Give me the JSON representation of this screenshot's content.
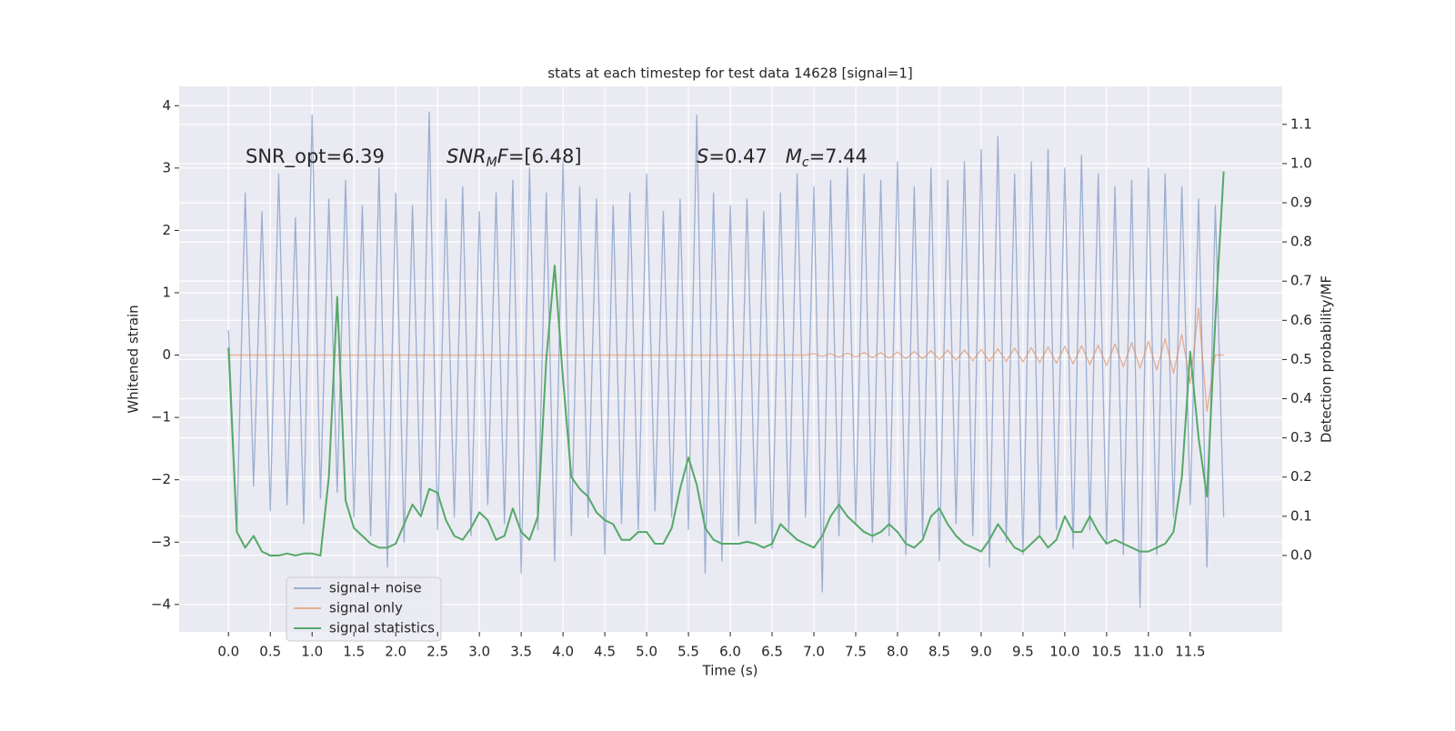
{
  "chart_data": {
    "type": "line",
    "title": "stats at each timestep for test data 14628 [signal=1]",
    "xlabel": "Time (s)",
    "ylabel": "Whitened strain",
    "y2label": "Detection probability/MF",
    "x": [
      0.0,
      0.1,
      0.2,
      0.3,
      0.4,
      0.5,
      0.6,
      0.7,
      0.8,
      0.9,
      1.0,
      1.1,
      1.2,
      1.3,
      1.4,
      1.5,
      1.6,
      1.7,
      1.8,
      1.9,
      2.0,
      2.1,
      2.2,
      2.3,
      2.4,
      2.5,
      2.6,
      2.7,
      2.8,
      2.9,
      3.0,
      3.1,
      3.2,
      3.3,
      3.4,
      3.5,
      3.6,
      3.7,
      3.8,
      3.9,
      4.0,
      4.1,
      4.2,
      4.3,
      4.4,
      4.5,
      4.6,
      4.7,
      4.8,
      4.9,
      5.0,
      5.1,
      5.2,
      5.3,
      5.4,
      5.5,
      5.6,
      5.7,
      5.8,
      5.9,
      6.0,
      6.1,
      6.2,
      6.3,
      6.4,
      6.5,
      6.6,
      6.7,
      6.8,
      6.9,
      7.0,
      7.1,
      7.2,
      7.3,
      7.4,
      7.5,
      7.6,
      7.7,
      7.8,
      7.9,
      8.0,
      8.1,
      8.2,
      8.3,
      8.4,
      8.5,
      8.6,
      8.7,
      8.8,
      8.9,
      9.0,
      9.1,
      9.2,
      9.3,
      9.4,
      9.5,
      9.6,
      9.7,
      9.8,
      9.9,
      10.0,
      10.1,
      10.2,
      10.3,
      10.4,
      10.5,
      10.6,
      10.7,
      10.8,
      10.9,
      11.0,
      11.1,
      11.2,
      11.3,
      11.4,
      11.5,
      11.6,
      11.7,
      11.8,
      11.9
    ],
    "series": [
      {
        "name": "signal+ noise",
        "color": "#4c72b0",
        "alpha": 0.5,
        "values": [
          0.4,
          -2.8,
          2.6,
          -2.1,
          2.3,
          -2.5,
          2.9,
          -2.4,
          2.2,
          -2.7,
          3.85,
          -2.3,
          2.5,
          -2.2,
          2.8,
          -2.6,
          2.4,
          -2.9,
          3.0,
          -3.4,
          2.6,
          -3.0,
          2.4,
          -2.5,
          3.9,
          -2.8,
          2.5,
          -2.6,
          2.7,
          -2.9,
          2.3,
          -2.4,
          2.6,
          -2.7,
          2.8,
          -3.5,
          3.0,
          -2.8,
          2.6,
          -3.3,
          3.1,
          -2.9,
          2.7,
          -2.6,
          2.5,
          -3.2,
          2.4,
          -2.7,
          2.6,
          -2.8,
          2.9,
          -2.5,
          2.3,
          -2.6,
          2.5,
          -2.8,
          3.85,
          -3.5,
          2.6,
          -3.3,
          2.4,
          -2.9,
          2.5,
          -2.7,
          2.3,
          -3.1,
          2.6,
          -2.8,
          2.9,
          -2.6,
          2.7,
          -3.8,
          2.8,
          -2.9,
          3.0,
          -2.7,
          2.9,
          -3.0,
          2.8,
          -2.9,
          3.1,
          -3.2,
          2.7,
          -2.9,
          3.0,
          -3.3,
          2.8,
          -2.7,
          3.1,
          -2.9,
          3.3,
          -3.4,
          3.5,
          -3.0,
          2.9,
          -3.2,
          3.1,
          -2.9,
          3.3,
          -2.8,
          3.0,
          -3.1,
          3.2,
          -2.8,
          2.9,
          -3.0,
          2.7,
          -3.2,
          2.8,
          -4.05,
          3.0,
          -3.2,
          2.9,
          -2.6,
          2.7,
          -2.4,
          2.5,
          -3.4,
          2.4,
          -2.6
        ]
      },
      {
        "name": "signal only",
        "color": "#dd8452",
        "alpha": 0.6,
        "values": [
          0,
          0,
          0,
          0,
          0,
          0,
          0,
          0,
          0,
          0,
          0,
          0,
          0,
          0,
          0,
          0,
          0,
          0,
          0,
          0,
          0,
          0,
          0,
          0,
          0,
          0,
          0,
          0,
          0,
          0,
          0,
          0,
          0,
          0,
          0,
          0,
          0,
          0,
          0,
          0,
          0,
          0,
          0,
          0,
          0,
          0,
          0,
          0,
          0,
          0,
          0,
          0,
          0,
          0,
          0,
          0,
          0,
          0,
          0,
          0,
          0,
          0,
          0,
          0,
          0,
          0,
          0,
          0,
          0,
          0,
          0.02,
          -0.02,
          0.02,
          -0.03,
          0.03,
          -0.03,
          0.04,
          -0.04,
          0.04,
          -0.05,
          0.05,
          -0.06,
          0.06,
          -0.06,
          0.07,
          -0.07,
          0.08,
          -0.08,
          0.08,
          -0.09,
          0.09,
          -0.1,
          0.1,
          -0.1,
          0.11,
          -0.11,
          0.12,
          -0.12,
          0.13,
          -0.13,
          0.14,
          -0.14,
          0.15,
          -0.15,
          0.16,
          -0.17,
          0.18,
          -0.19,
          0.2,
          -0.21,
          0.22,
          -0.24,
          0.26,
          -0.29,
          0.33,
          -0.45,
          0.75,
          -0.9,
          0,
          0
        ]
      },
      {
        "name": "signal statistics",
        "color": "#55a868",
        "axis": "y2",
        "values": [
          0.53,
          0.06,
          0.02,
          0.05,
          0.01,
          0.0,
          0.0,
          0.005,
          0.0,
          0.005,
          0.005,
          0.0,
          0.2,
          0.66,
          0.14,
          0.07,
          0.05,
          0.03,
          0.02,
          0.02,
          0.03,
          0.08,
          0.13,
          0.1,
          0.17,
          0.16,
          0.09,
          0.05,
          0.04,
          0.07,
          0.11,
          0.09,
          0.04,
          0.05,
          0.12,
          0.06,
          0.04,
          0.1,
          0.5,
          0.74,
          0.45,
          0.2,
          0.17,
          0.15,
          0.11,
          0.09,
          0.08,
          0.04,
          0.04,
          0.06,
          0.06,
          0.03,
          0.03,
          0.07,
          0.17,
          0.25,
          0.18,
          0.07,
          0.04,
          0.03,
          0.03,
          0.03,
          0.035,
          0.03,
          0.02,
          0.03,
          0.08,
          0.06,
          0.04,
          0.03,
          0.02,
          0.05,
          0.1,
          0.13,
          0.1,
          0.08,
          0.06,
          0.05,
          0.06,
          0.08,
          0.06,
          0.03,
          0.02,
          0.04,
          0.1,
          0.12,
          0.08,
          0.05,
          0.03,
          0.02,
          0.01,
          0.04,
          0.08,
          0.05,
          0.02,
          0.01,
          0.03,
          0.05,
          0.02,
          0.04,
          0.1,
          0.06,
          0.06,
          0.1,
          0.06,
          0.03,
          0.04,
          0.03,
          0.02,
          0.01,
          0.01,
          0.02,
          0.03,
          0.06,
          0.2,
          0.52,
          0.3,
          0.15,
          0.6,
          0.98
        ]
      }
    ],
    "xlim": [
      -0.59,
      12.6
    ],
    "ylim": [
      -4.44,
      4.31
    ],
    "y2lim": [
      -0.195,
      1.197
    ],
    "xticks": [
      {
        "value": 0,
        "label": "0.0"
      },
      0.5,
      {
        "value": 1,
        "label": "1.0"
      },
      1.5,
      {
        "value": 2,
        "label": "2.0"
      },
      2.5,
      {
        "value": 3,
        "label": "3.0"
      },
      3.5,
      {
        "value": 4,
        "label": "4.0"
      },
      4.5,
      {
        "value": 5,
        "label": "5.0"
      },
      5.5,
      {
        "value": 6,
        "label": "6.0"
      },
      6.5,
      {
        "value": 7,
        "label": "7.0"
      },
      7.5,
      {
        "value": 8,
        "label": "8.0"
      },
      8.5,
      {
        "value": 9,
        "label": "9.0"
      },
      9.5,
      {
        "value": 10,
        "label": "10.0"
      },
      10.5,
      {
        "value": 11,
        "label": "11.0"
      },
      11.5
    ],
    "yticks": [
      {
        "value": -4,
        "label": "−4"
      },
      {
        "value": -3,
        "label": "−3"
      },
      {
        "value": -2,
        "label": "−2"
      },
      {
        "value": -1,
        "label": "−1"
      },
      0,
      1,
      2,
      3,
      4
    ],
    "y2ticks": [
      {
        "value": 0,
        "label": "0.0"
      },
      0.1,
      0.2,
      0.3,
      0.4,
      0.5,
      0.6,
      0.7,
      0.8,
      0.9,
      {
        "value": 1,
        "label": "1.0"
      },
      1.1
    ],
    "grid": true,
    "legend": "lower left",
    "annotations": [
      {
        "parts": [
          {
            "text": "SNR_opt=6.39"
          }
        ]
      },
      {
        "parts": [
          {
            "text": "SNR",
            "italic": true
          },
          {
            "text": "M",
            "italic": true,
            "sub": true
          },
          {
            "text": "F",
            "italic": true
          },
          {
            "text": "=[6.48]"
          }
        ]
      },
      {
        "parts": [
          {
            "text": "S",
            "italic": true
          },
          {
            "text": "=0.47   "
          },
          {
            "text": "M",
            "italic": true
          },
          {
            "text": "c",
            "italic": true,
            "sub": true
          },
          {
            "text": "=7.44"
          }
        ]
      }
    ]
  }
}
